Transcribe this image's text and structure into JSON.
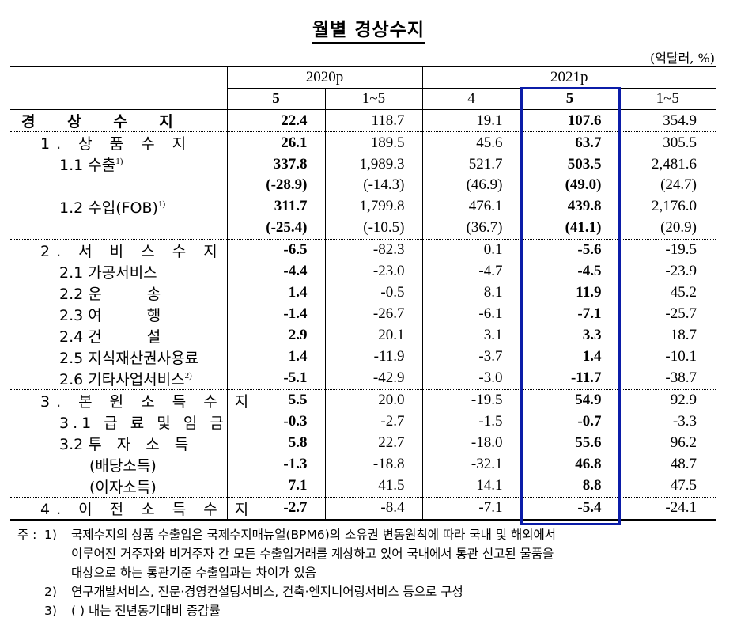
{
  "title": "월별 경상수지",
  "unit": "(억달러, %)",
  "header": {
    "groups": [
      {
        "label": "2020p",
        "colspan": 2
      },
      {
        "label": "2021p",
        "colspan": 3
      }
    ],
    "columns": [
      "5",
      "1~5",
      "4",
      "5",
      "1~5"
    ]
  },
  "highlight": {
    "column": "2021p 5",
    "color": "#0b1ca8"
  },
  "rows": [
    {
      "label": "경 상 수 지",
      "values": [
        "22.4",
        "118.7",
        "19.1",
        "107.6",
        "354.9"
      ]
    },
    {
      "label": "1. 상 품 수 지",
      "values": [
        "26.1",
        "189.5",
        "45.6",
        "63.7",
        "305.5"
      ]
    },
    {
      "label": "1.1 수출",
      "sup": "1)",
      "values": [
        "337.8",
        "1,989.3",
        "521.7",
        "503.5",
        "2,481.6"
      ]
    },
    {
      "label": "",
      "values": [
        "(-28.9)",
        "(-14.3)",
        "(46.9)",
        "(49.0)",
        "(24.7)"
      ]
    },
    {
      "label": "1.2 수입(FOB)",
      "sup": "1)",
      "values": [
        "311.7",
        "1,799.8",
        "476.1",
        "439.8",
        "2,176.0"
      ]
    },
    {
      "label": "",
      "values": [
        "(-25.4)",
        "(-10.5)",
        "(36.7)",
        "(41.1)",
        "(20.9)"
      ]
    },
    {
      "label": "2. 서 비 스 수 지",
      "values": [
        "-6.5",
        "-82.3",
        "0.1",
        "-5.6",
        "-19.5"
      ]
    },
    {
      "label": "2.1 가공서비스",
      "values": [
        "-4.4",
        "-23.0",
        "-4.7",
        "-4.5",
        "-23.9"
      ]
    },
    {
      "label": "2.2 운　　　송",
      "values": [
        "1.4",
        "-0.5",
        "8.1",
        "11.9",
        "45.2"
      ]
    },
    {
      "label": "2.3 여　　　행",
      "values": [
        "-1.4",
        "-26.7",
        "-6.1",
        "-7.1",
        "-25.7"
      ]
    },
    {
      "label": "2.4 건　　　설",
      "values": [
        "2.9",
        "20.1",
        "3.1",
        "3.3",
        "18.7"
      ]
    },
    {
      "label": "2.5 지식재산권사용료",
      "values": [
        "1.4",
        "-11.9",
        "-3.7",
        "1.4",
        "-10.1"
      ]
    },
    {
      "label": "2.6 기타사업서비스",
      "sup": "2)",
      "values": [
        "-5.1",
        "-42.9",
        "-3.0",
        "-11.7",
        "-38.7"
      ]
    },
    {
      "label": "3. 본 원 소 득 수 지",
      "values": [
        "5.5",
        "20.0",
        "-19.5",
        "54.9",
        "92.9"
      ]
    },
    {
      "label": "3.1 급 료 및 임 금",
      "values": [
        "-0.3",
        "-2.7",
        "-1.5",
        "-0.7",
        "-3.3"
      ]
    },
    {
      "label": "3.2 투　자　소　득",
      "values": [
        "5.8",
        "22.7",
        "-18.0",
        "55.6",
        "96.2"
      ]
    },
    {
      "label": "(배당소득)",
      "values": [
        "-1.3",
        "-18.8",
        "-32.1",
        "46.8",
        "48.7"
      ]
    },
    {
      "label": "(이자소득)",
      "values": [
        "7.1",
        "41.5",
        "14.1",
        "8.8",
        "47.5"
      ]
    },
    {
      "label": "4. 이 전 소 득 수 지",
      "values": [
        "-2.7",
        "-8.4",
        "-7.1",
        "-5.4",
        "-24.1"
      ]
    }
  ],
  "notes": {
    "prefix": "주 :",
    "items": [
      {
        "num": "1)",
        "lines": [
          "국제수지의 상품 수출입은 국제수지매뉴얼(BPM6)의 소유권 변동원칙에 따라 국내 및 해외에서",
          "이루어진 거주자와 비거주자 간 모든 수출입거래를 계상하고 있어 국내에서 통관 신고된 물품을",
          "대상으로 하는 통관기준 수출입과는 차이가 있음"
        ]
      },
      {
        "num": "2)",
        "lines": [
          "연구개발서비스, 전문·경영컨설팅서비스, 건축·엔지니어링서비스 등으로 구성"
        ]
      },
      {
        "num": "3)",
        "lines": [
          "(  ) 내는 전년동기대비 증감률"
        ]
      }
    ]
  }
}
